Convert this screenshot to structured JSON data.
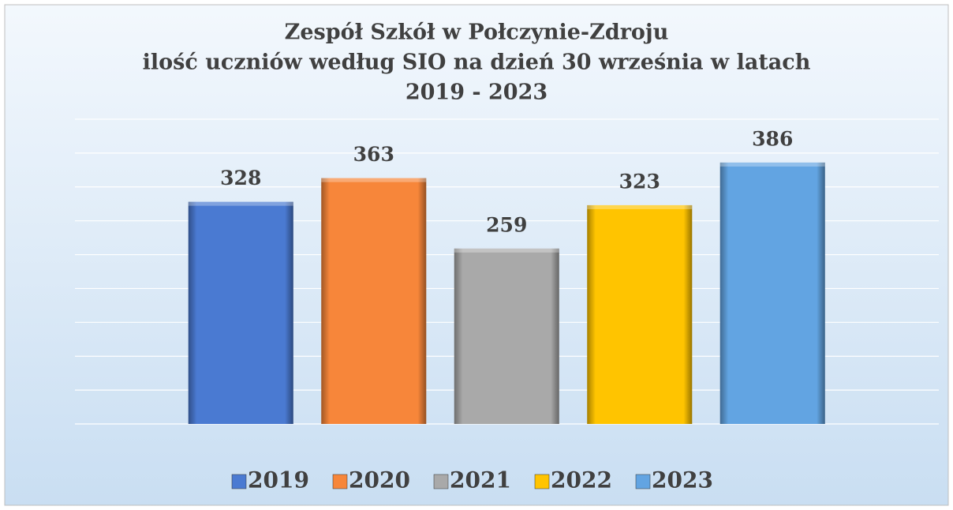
{
  "chart_data": {
    "type": "bar",
    "title": [
      "Zespół Szkół w Połczynie-Zdroju",
      "ilość uczniów według SIO na dzień 30 września w latach",
      "2019 - 2023"
    ],
    "series": [
      {
        "name": "2019",
        "color": "#4a7ad2",
        "values": [
          328
        ]
      },
      {
        "name": "2020",
        "color": "#f7863a",
        "values": [
          363
        ]
      },
      {
        "name": "2021",
        "color": "#a9a9a9",
        "values": [
          259
        ]
      },
      {
        "name": "2022",
        "color": "#ffc400",
        "values": [
          323
        ]
      },
      {
        "name": "2023",
        "color": "#62a4e2",
        "values": [
          386
        ]
      }
    ],
    "ylim": [
      0,
      450
    ],
    "yticks": [
      0,
      50,
      100,
      150,
      200,
      250,
      300,
      350,
      400,
      450
    ],
    "grid": true,
    "legend": "bottom"
  }
}
